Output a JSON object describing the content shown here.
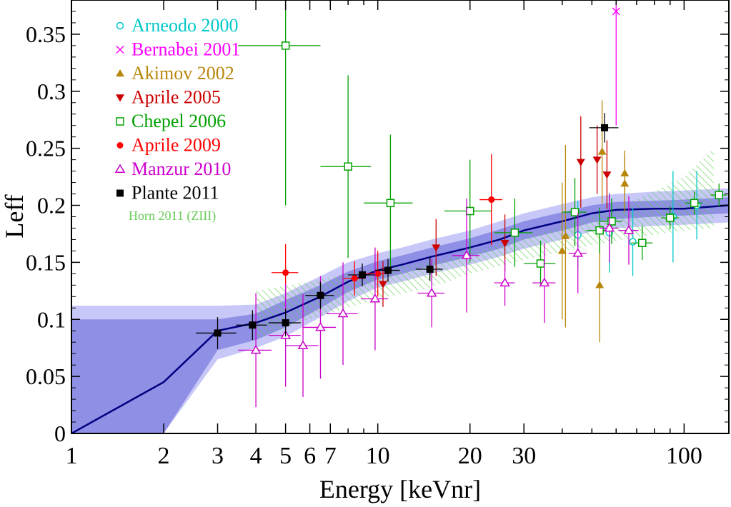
{
  "chart_data": {
    "type": "scatter",
    "xlabel": "Energy [keVnr]",
    "ylabel": "Leff",
    "xscale": "log",
    "xlim": [
      1,
      140
    ],
    "ylim": [
      0,
      0.38
    ],
    "x_ticks": [
      1,
      2,
      3,
      4,
      5,
      6,
      7,
      10,
      20,
      30,
      100
    ],
    "x_tick_labels": [
      "1",
      "2",
      "3",
      "4",
      "5",
      "6",
      "7",
      "10",
      "20",
      "30",
      "100"
    ],
    "y_ticks": [
      0,
      0.05,
      0.1,
      0.15,
      0.2,
      0.25,
      0.3,
      0.35
    ],
    "y_tick_labels": [
      "0",
      "0.05",
      "0.1",
      "0.15",
      "0.2",
      "0.25",
      "0.3",
      "0.35"
    ],
    "legend_position": "top-left",
    "fit": {
      "x": [
        1,
        2,
        3,
        4,
        5,
        6.5,
        8,
        10,
        12,
        15,
        20,
        25,
        30,
        40,
        50,
        60,
        80,
        100,
        140
      ],
      "y": [
        0,
        0.045,
        0.09,
        0.097,
        0.106,
        0.12,
        0.133,
        0.143,
        0.148,
        0.155,
        0.163,
        0.17,
        0.178,
        0.186,
        0.193,
        0.196,
        0.197,
        0.197,
        0.2
      ],
      "band1_lo": [
        0.0,
        0.0,
        0.073,
        0.082,
        0.093,
        0.11,
        0.124,
        0.135,
        0.14,
        0.147,
        0.155,
        0.162,
        0.17,
        0.178,
        0.185,
        0.188,
        0.19,
        0.191,
        0.193
      ],
      "band1_hi": [
        0.1,
        0.1,
        0.1,
        0.105,
        0.117,
        0.13,
        0.142,
        0.151,
        0.156,
        0.163,
        0.171,
        0.179,
        0.186,
        0.194,
        0.2,
        0.203,
        0.204,
        0.205,
        0.207
      ],
      "band2_lo": [
        0.0,
        0.0,
        0.065,
        0.075,
        0.085,
        0.102,
        0.116,
        0.128,
        0.133,
        0.14,
        0.148,
        0.155,
        0.162,
        0.17,
        0.177,
        0.18,
        0.182,
        0.183,
        0.185
      ],
      "band2_hi": [
        0.112,
        0.112,
        0.112,
        0.113,
        0.123,
        0.138,
        0.15,
        0.158,
        0.163,
        0.17,
        0.178,
        0.186,
        0.193,
        0.201,
        0.207,
        0.21,
        0.212,
        0.213,
        0.215
      ]
    },
    "horn_band": {
      "name": "Horn 2011 (ZIII)",
      "x": [
        4,
        6,
        8,
        10,
        15,
        20,
        30,
        50,
        70,
        100,
        125
      ],
      "lo": [
        0.083,
        0.1,
        0.11,
        0.118,
        0.128,
        0.14,
        0.152,
        0.165,
        0.172,
        0.178,
        0.18
      ],
      "hi": [
        0.125,
        0.133,
        0.14,
        0.145,
        0.15,
        0.158,
        0.172,
        0.19,
        0.205,
        0.225,
        0.25
      ]
    },
    "series": [
      {
        "name": "Arneodo 2000",
        "color": "#00c8c8",
        "marker": "circle-open",
        "points": [
          {
            "x": 45,
            "y": 0.174,
            "yerr": 0.03
          },
          {
            "x": 57,
            "y": 0.176,
            "yerr": 0.035
          },
          {
            "x": 68,
            "y": 0.168,
            "yerr": 0.03
          },
          {
            "x": 110,
            "y": 0.2,
            "yerr": 0.03
          },
          {
            "x": 92,
            "y": 0.19,
            "yerr": 0.04
          }
        ]
      },
      {
        "name": "Bernabei 2001",
        "color": "#ff00ff",
        "marker": "cross",
        "points": [
          {
            "x": 60,
            "y": 0.37,
            "yerr": 0.1
          }
        ]
      },
      {
        "name": "Akimov 2002",
        "color": "#b8860b",
        "marker": "triangle-up",
        "points": [
          {
            "x": 40,
            "y": 0.16,
            "yerr": 0.06
          },
          {
            "x": 41,
            "y": 0.173,
            "yerr": 0.08
          },
          {
            "x": 53,
            "y": 0.13,
            "yerr": 0.05
          },
          {
            "x": 54,
            "y": 0.247,
            "yerr": 0.045
          },
          {
            "x": 64,
            "y": 0.228,
            "yerr": 0.02
          },
          {
            "x": 64,
            "y": 0.219,
            "yerr": 0.025
          }
        ]
      },
      {
        "name": "Aprile 2005",
        "color": "#cc0000",
        "marker": "triangle-down",
        "points": [
          {
            "x": 10.4,
            "y": 0.131,
            "yerr": 0.02
          },
          {
            "x": 15.5,
            "y": 0.163,
            "yerr": 0.025
          },
          {
            "x": 26,
            "y": 0.167,
            "yerr": 0.025
          },
          {
            "x": 46,
            "y": 0.238,
            "yerr": 0.04
          },
          {
            "x": 52,
            "y": 0.24,
            "yerr": 0.03
          },
          {
            "x": 56,
            "y": 0.227,
            "yerr": 0.03
          }
        ]
      },
      {
        "name": "Chepel 2006",
        "color": "#00a000",
        "marker": "square-open",
        "points": [
          {
            "x": 5,
            "y": 0.34,
            "yerr": 0.14,
            "xerr": 1.5
          },
          {
            "x": 8,
            "y": 0.234,
            "yerr": 0.08,
            "xerr": 1.5
          },
          {
            "x": 11,
            "y": 0.202,
            "yerr": 0.06,
            "xerr": 2
          },
          {
            "x": 20,
            "y": 0.195,
            "yerr": 0.045,
            "xerr": 3.5
          },
          {
            "x": 28,
            "y": 0.176,
            "yerr": 0.03,
            "xerr": 4
          },
          {
            "x": 34,
            "y": 0.149,
            "yerr": 0.02,
            "xerr": 4
          },
          {
            "x": 44,
            "y": 0.194,
            "yerr": 0.03,
            "xerr": 4
          },
          {
            "x": 53,
            "y": 0.178,
            "yerr": 0.02,
            "xerr": 5
          },
          {
            "x": 58,
            "y": 0.186,
            "yerr": 0.02,
            "xerr": 5
          },
          {
            "x": 73,
            "y": 0.167,
            "yerr": 0.015,
            "xerr": 6
          },
          {
            "x": 90,
            "y": 0.189,
            "yerr": 0.01,
            "xerr": 6
          },
          {
            "x": 108,
            "y": 0.202,
            "yerr": 0.01,
            "xerr": 7
          },
          {
            "x": 130,
            "y": 0.209,
            "yerr": 0.01,
            "xerr": 8
          }
        ]
      },
      {
        "name": "Aprile 2009",
        "color": "#ff0000",
        "marker": "circle",
        "points": [
          {
            "x": 5,
            "y": 0.141,
            "yerr": 0.025,
            "xerr": 0.5
          },
          {
            "x": 8.4,
            "y": 0.136,
            "yerr": 0.015,
            "xerr": 0.7
          },
          {
            "x": 10,
            "y": 0.14,
            "yerr": 0.02,
            "xerr": 0.9
          },
          {
            "x": 23.5,
            "y": 0.205,
            "yerr": 0.04,
            "xerr": 2
          }
        ]
      },
      {
        "name": "Manzur 2010",
        "color": "#cc00cc",
        "marker": "triangle-open",
        "points": [
          {
            "x": 4,
            "y": 0.073,
            "yerr": 0.05,
            "xerr": 0.5
          },
          {
            "x": 5,
            "y": 0.086,
            "yerr": 0.045,
            "xerr": 0.6
          },
          {
            "x": 5.7,
            "y": 0.077,
            "yerr": 0.045,
            "xerr": 0.7
          },
          {
            "x": 6.5,
            "y": 0.093,
            "yerr": 0.045,
            "xerr": 0.8
          },
          {
            "x": 7.7,
            "y": 0.105,
            "yerr": 0.045,
            "xerr": 0.9
          },
          {
            "x": 9.8,
            "y": 0.118,
            "yerr": 0.045,
            "xerr": 1
          },
          {
            "x": 15,
            "y": 0.123,
            "yerr": 0.03,
            "xerr": 1.5
          },
          {
            "x": 19.5,
            "y": 0.156,
            "yerr": 0.05,
            "xerr": 2
          },
          {
            "x": 26,
            "y": 0.132,
            "yerr": 0.02,
            "xerr": 2
          },
          {
            "x": 35,
            "y": 0.132,
            "yerr": 0.035,
            "xerr": 3
          },
          {
            "x": 45,
            "y": 0.158,
            "yerr": 0.035,
            "xerr": 3
          },
          {
            "x": 57,
            "y": 0.18,
            "yerr": 0.03,
            "xerr": 4
          },
          {
            "x": 66,
            "y": 0.178,
            "yerr": 0.03,
            "xerr": 5
          }
        ]
      },
      {
        "name": "Plante 2011",
        "color": "#000000",
        "marker": "square",
        "points": [
          {
            "x": 3,
            "y": 0.088,
            "yerr": 0.014,
            "xerr": 0.45
          },
          {
            "x": 3.9,
            "y": 0.095,
            "yerr": 0.013,
            "xerr": 0.45
          },
          {
            "x": 5,
            "y": 0.097,
            "yerr": 0.012,
            "xerr": 0.6
          },
          {
            "x": 6.5,
            "y": 0.121,
            "yerr": 0.012,
            "xerr": 0.7
          },
          {
            "x": 8.9,
            "y": 0.139,
            "yerr": 0.01,
            "xerr": 0.9
          },
          {
            "x": 10.8,
            "y": 0.143,
            "yerr": 0.01,
            "xerr": 1
          },
          {
            "x": 14.8,
            "y": 0.144,
            "yerr": 0.01,
            "xerr": 1.5
          },
          {
            "x": 55,
            "y": 0.268,
            "yerr": 0.013,
            "xerr": 6
          }
        ]
      }
    ]
  }
}
